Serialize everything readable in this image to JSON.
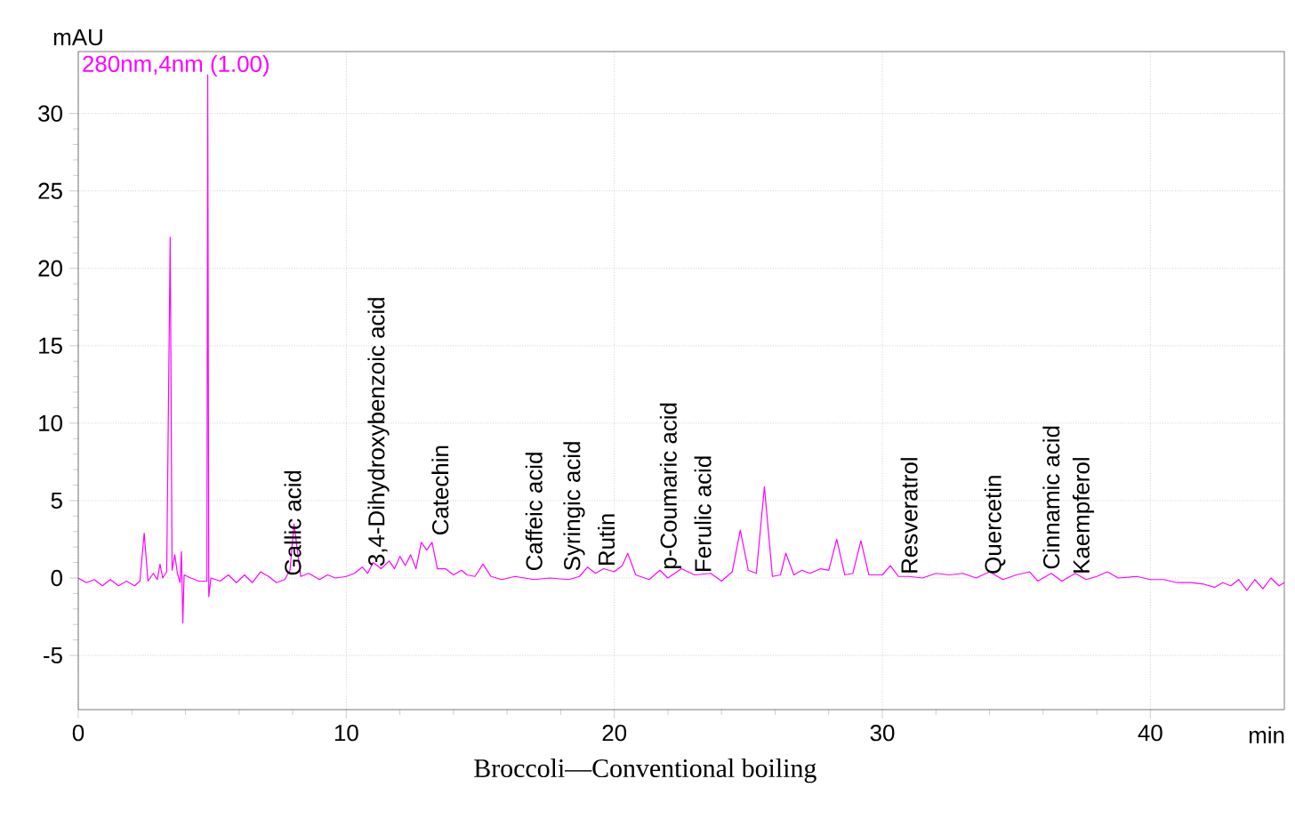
{
  "chart_data": {
    "type": "line",
    "title": "Broccoli—Conventional boiling",
    "xlabel": "min",
    "ylabel": "mAU",
    "xlim": [
      0,
      45
    ],
    "ylim": [
      -8.5,
      34
    ],
    "xticks": [
      0,
      10,
      20,
      30,
      40
    ],
    "yticks": [
      -5,
      0,
      5,
      10,
      15,
      20,
      25,
      30
    ],
    "grid": true,
    "legend": "top left",
    "marker": "none",
    "line_style": "solid",
    "series": [
      {
        "name": "280nm,4nm (1.00)",
        "color": "#ff00ff",
        "x": [
          0,
          0.3,
          0.6,
          0.9,
          1.2,
          1.5,
          1.8,
          2.1,
          2.3,
          2.46,
          2.6,
          2.8,
          2.95,
          3.05,
          3.15,
          3.3,
          3.43,
          3.5,
          3.6,
          3.7,
          3.8,
          3.85,
          3.9,
          3.95,
          4.2,
          4.5,
          4.8,
          4.83,
          4.87,
          4.95,
          5.3,
          5.6,
          5.9,
          6.2,
          6.5,
          6.8,
          7.1,
          7.4,
          7.7,
          7.9,
          8.05,
          8.3,
          8.6,
          9,
          9.3,
          9.6,
          10,
          10.3,
          10.6,
          10.8,
          11,
          11.3,
          11.6,
          11.8,
          12,
          12.2,
          12.4,
          12.6,
          12.8,
          13,
          13.2,
          13.4,
          13.7,
          14,
          14.3,
          14.5,
          14.8,
          15.1,
          15.4,
          15.8,
          16.3,
          17,
          17.6,
          18.3,
          18.7,
          19,
          19.3,
          19.6,
          20,
          20.3,
          20.5,
          20.8,
          21.3,
          21.7,
          22,
          22.5,
          23,
          23.6,
          24,
          24.4,
          24.7,
          25,
          25.3,
          25.6,
          25.9,
          26.2,
          26.4,
          26.7,
          27,
          27.3,
          27.7,
          28,
          28.3,
          28.6,
          28.9,
          29.2,
          29.5,
          30,
          30.3,
          30.6,
          31,
          31.5,
          32,
          32.5,
          33,
          33.5,
          34,
          34.5,
          35,
          35.5,
          35.8,
          36.3,
          36.7,
          37.2,
          37.6,
          38,
          38.4,
          38.8,
          39.5,
          40,
          40.5,
          41,
          41.5,
          42,
          42.4,
          42.7,
          43,
          43.3,
          43.6,
          43.9,
          44.2,
          44.5,
          44.8,
          45
        ],
        "values": [
          0,
          -0.3,
          -0.1,
          -0.5,
          -0.1,
          -0.5,
          -0.2,
          -0.5,
          -0.2,
          2.9,
          -0.2,
          0.3,
          -0.1,
          0.9,
          0,
          0.4,
          22,
          0.5,
          1.5,
          0.3,
          -0.3,
          1.7,
          -2.9,
          0.2,
          0,
          -0.2,
          -0.2,
          32.5,
          -1.2,
          0,
          -0.2,
          0.2,
          -0.3,
          0.2,
          -0.3,
          0.4,
          0.1,
          -0.3,
          -0.1,
          0.5,
          3.5,
          0.1,
          0.3,
          -0.1,
          0.2,
          0,
          0.1,
          0.3,
          0.7,
          0.3,
          1,
          0.6,
          1.1,
          0.6,
          1.4,
          0.8,
          1.5,
          0.6,
          2.3,
          1.8,
          2.3,
          0.6,
          0.6,
          0.2,
          0.5,
          0.2,
          0.1,
          0.9,
          0.1,
          -0.1,
          0.1,
          -0.1,
          0,
          -0.1,
          0.1,
          0.7,
          0.3,
          0.6,
          0.4,
          0.8,
          1.6,
          0.2,
          -0.1,
          0.5,
          0,
          0.6,
          0.2,
          0.3,
          -0.2,
          0.4,
          3.1,
          0.5,
          0.3,
          5.9,
          0.1,
          0.2,
          1.6,
          0.2,
          0.5,
          0.3,
          0.6,
          0.5,
          2.5,
          0.2,
          0.3,
          2.4,
          0.2,
          0.2,
          0.8,
          0.1,
          0.1,
          0,
          0.3,
          0.2,
          0.3,
          0,
          0.4,
          -0.1,
          0.2,
          0.4,
          -0.2,
          0.3,
          -0.2,
          0.3,
          -0.1,
          0.1,
          0.4,
          0,
          0.1,
          -0.1,
          -0.1,
          -0.3,
          -0.3,
          -0.4,
          -0.6,
          -0.3,
          -0.5,
          -0.1,
          -0.8,
          -0.1,
          -0.7,
          0,
          -0.5,
          -0.3
        ]
      }
    ],
    "annotations": [
      {
        "text": "Gallic acid",
        "x": 8.0,
        "y": 0
      },
      {
        "text": "3,4-Dihydroxybenzoic acid",
        "x": 11.2,
        "y": 0.6
      },
      {
        "text": "Catechin",
        "x": 13.5,
        "y": 2.6
      },
      {
        "text": "Caffeic acid",
        "x": 17.0,
        "y": 0.3
      },
      {
        "text": "Syringic acid",
        "x": 18.5,
        "y": 0.3
      },
      {
        "text": "Rutin",
        "x": 19.7,
        "y": 0.6
      },
      {
        "text": "p-Coumaric acid",
        "x": 22.1,
        "y": 0.4
      },
      {
        "text": "Ferulic acid",
        "x": 23.3,
        "y": 0.2
      },
      {
        "text": "Resveratrol",
        "x": 31.0,
        "y": 0.1
      },
      {
        "text": "Quercetin",
        "x": 34.2,
        "y": 0.1
      },
      {
        "text": "Cinnamic acid",
        "x": 36.3,
        "y": 0.4
      },
      {
        "text": "Kaempferol",
        "x": 37.5,
        "y": 0.1
      }
    ]
  }
}
